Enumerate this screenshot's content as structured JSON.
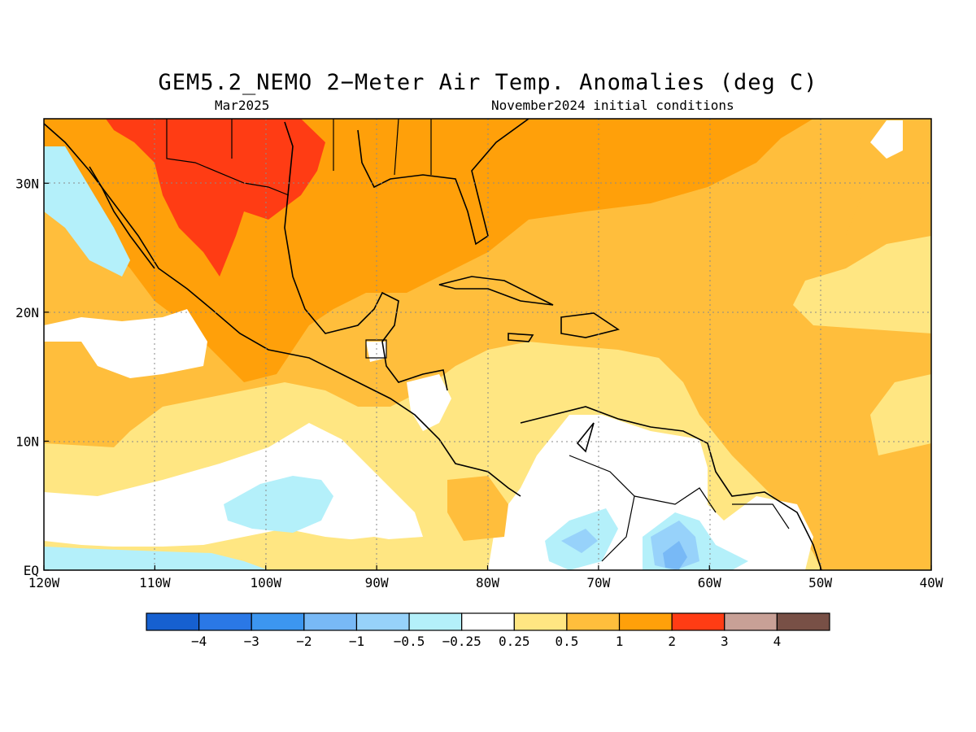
{
  "title": "GEM5.2_NEMO 2−Meter Air Temp. Anomalies (deg C)",
  "subtitle_left": "Mar2025",
  "subtitle_right": "November2024 initial conditions",
  "map": {
    "lon_ticks": [
      "120W",
      "110W",
      "100W",
      "90W",
      "80W",
      "70W",
      "60W",
      "50W",
      "40W"
    ],
    "lat_ticks": [
      "EQ",
      "10N",
      "20N",
      "30N"
    ],
    "lon_range": [
      -120,
      -40
    ],
    "lat_range": [
      0,
      35
    ],
    "grid": "dotted"
  },
  "colorbar": {
    "labels": [
      "−4",
      "−3",
      "−2",
      "−1",
      "−0.5",
      "−0.25",
      "0.25",
      "0.5",
      "1",
      "2",
      "3",
      "4"
    ],
    "colors": [
      "#1660d0",
      "#2a78e6",
      "#3c96f0",
      "#78b9f6",
      "#97d2fa",
      "#b4f0fa",
      "#ffffff",
      "#ffe682",
      "#ffbe3c",
      "#ffa00a",
      "#ff3c14",
      "#c8a096",
      "#785046"
    ]
  },
  "colors": {
    "warm_light": "#ffe682",
    "warm_mid": "#ffbe3c",
    "warm_strong": "#ffa00a",
    "hot": "#ff3c14",
    "cool_light": "#b4f0fa",
    "cool_mid": "#97d2fa",
    "cool_strong": "#78b9f6"
  }
}
